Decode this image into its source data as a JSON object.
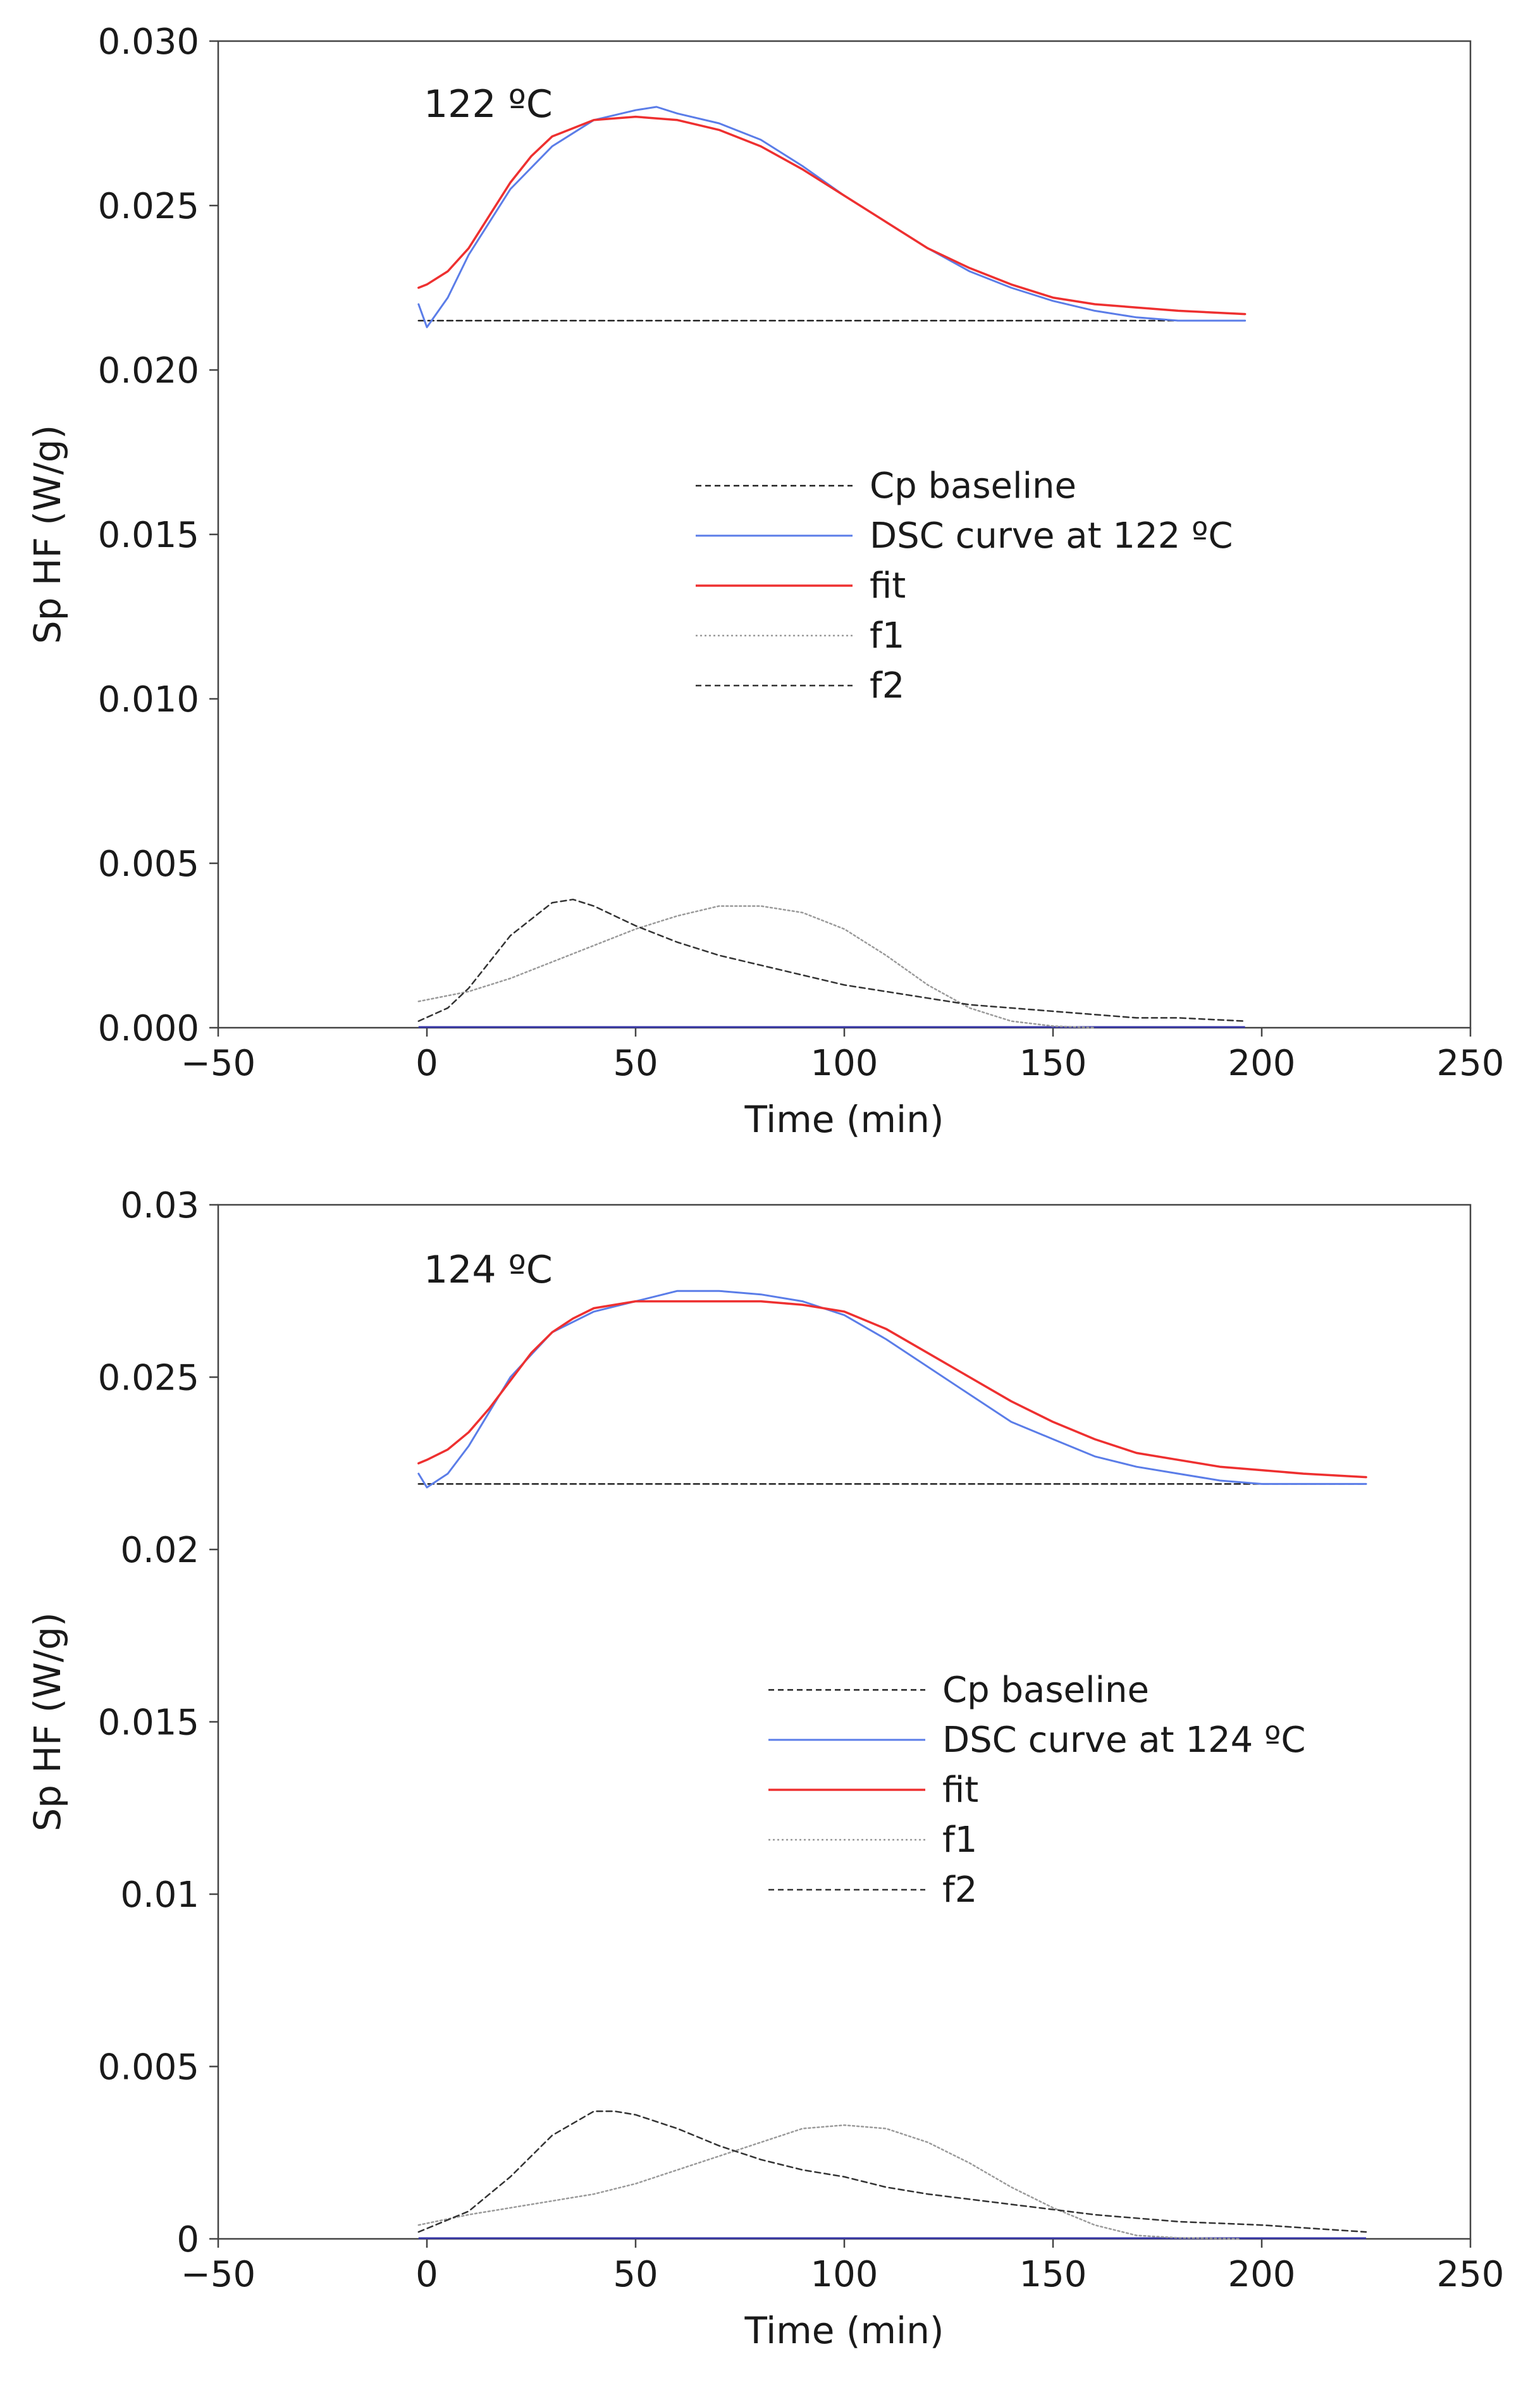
{
  "chart_data": [
    {
      "type": "line",
      "annotation": "122 ºC",
      "xlabel": "Time (min)",
      "ylabel": "Sp HF (W/g)",
      "xlim": [
        -50,
        250
      ],
      "ylim": [
        0,
        0.03
      ],
      "xticks": [
        -50,
        0,
        50,
        100,
        150,
        200,
        250
      ],
      "xtick_labels": [
        "−50",
        "0",
        "50",
        "100",
        "150",
        "200",
        "250"
      ],
      "yticks": [
        0,
        0.005,
        0.01,
        0.015,
        0.02,
        0.025,
        0.03
      ],
      "ytick_labels": [
        "0.000",
        "0.005",
        "0.010",
        "0.015",
        "0.020",
        "0.025",
        "0.030"
      ],
      "grid": false,
      "legend_position": "center-right",
      "colors": {
        "baseline": "#222222",
        "dsc": "#5b7de8",
        "fit": "#ee3030",
        "f1": "#9a9a9a",
        "f2": "#333333",
        "zero": "#3a3aa8"
      },
      "series": [
        {
          "name": "Cp baseline",
          "style": "dashed",
          "color_key": "baseline",
          "x": [
            -2,
            196
          ],
          "y": [
            0.0215,
            0.0215
          ]
        },
        {
          "name": "DSC curve at 122 ºC",
          "style": "solid",
          "color_key": "dsc",
          "x": [
            -2,
            0,
            5,
            10,
            20,
            30,
            40,
            50,
            55,
            60,
            70,
            80,
            90,
            100,
            110,
            120,
            130,
            140,
            150,
            160,
            170,
            180,
            190,
            196
          ],
          "y": [
            0.022,
            0.0213,
            0.0222,
            0.0235,
            0.0255,
            0.0268,
            0.0276,
            0.0279,
            0.028,
            0.0278,
            0.0275,
            0.027,
            0.0262,
            0.0253,
            0.0245,
            0.0237,
            0.023,
            0.0225,
            0.0221,
            0.0218,
            0.0216,
            0.0215,
            0.0215,
            0.0215
          ]
        },
        {
          "name": "fit",
          "style": "solid",
          "color_key": "fit",
          "x": [
            -2,
            0,
            5,
            10,
            15,
            20,
            25,
            30,
            40,
            50,
            60,
            70,
            80,
            90,
            100,
            110,
            120,
            130,
            140,
            150,
            160,
            170,
            180,
            196
          ],
          "y": [
            0.0225,
            0.0226,
            0.023,
            0.0237,
            0.0247,
            0.0257,
            0.0265,
            0.0271,
            0.0276,
            0.0277,
            0.0276,
            0.0273,
            0.0268,
            0.0261,
            0.0253,
            0.0245,
            0.0237,
            0.0231,
            0.0226,
            0.0222,
            0.022,
            0.0219,
            0.0218,
            0.0217
          ]
        },
        {
          "name": "f1",
          "style": "dotted",
          "color_key": "f1",
          "x": [
            -2,
            10,
            20,
            30,
            40,
            50,
            60,
            70,
            75,
            80,
            90,
            100,
            110,
            120,
            130,
            140,
            150,
            160
          ],
          "y": [
            0.0008,
            0.0011,
            0.0015,
            0.002,
            0.0025,
            0.003,
            0.0034,
            0.0037,
            0.0037,
            0.0037,
            0.0035,
            0.003,
            0.0022,
            0.0013,
            0.0006,
            0.0002,
            5e-05,
            0
          ]
        },
        {
          "name": "f2",
          "style": "dashed",
          "color_key": "f2",
          "x": [
            -2,
            5,
            10,
            20,
            30,
            35,
            40,
            50,
            60,
            70,
            80,
            90,
            100,
            110,
            120,
            130,
            140,
            150,
            160,
            170,
            180,
            196
          ],
          "y": [
            0.0002,
            0.0006,
            0.0012,
            0.0028,
            0.0038,
            0.0039,
            0.0037,
            0.0031,
            0.0026,
            0.0022,
            0.0019,
            0.0016,
            0.0013,
            0.0011,
            0.0009,
            0.0007,
            0.0006,
            0.0005,
            0.0004,
            0.0003,
            0.0003,
            0.0002
          ]
        }
      ]
    },
    {
      "type": "line",
      "annotation": "124 ºC",
      "xlabel": "Time (min)",
      "ylabel": "Sp HF (W/g)",
      "xlim": [
        -50,
        250
      ],
      "ylim": [
        0,
        0.03
      ],
      "xticks": [
        -50,
        0,
        50,
        100,
        150,
        200,
        250
      ],
      "xtick_labels": [
        "−50",
        "0",
        "50",
        "100",
        "150",
        "200",
        "250"
      ],
      "yticks": [
        0,
        0.005,
        0.01,
        0.015,
        0.02,
        0.025,
        0.03
      ],
      "ytick_labels": [
        "0",
        "0.005",
        "0.01",
        "0.015",
        "0.02",
        "0.025",
        "0.03"
      ],
      "grid": false,
      "legend_position": "center-right",
      "colors": {
        "baseline": "#222222",
        "dsc": "#5b7de8",
        "fit": "#ee3030",
        "f1": "#9a9a9a",
        "f2": "#333333",
        "zero": "#3a3aa8"
      },
      "series": [
        {
          "name": "Cp baseline",
          "style": "dashed",
          "color_key": "baseline",
          "x": [
            -2,
            225
          ],
          "y": [
            0.0219,
            0.0219
          ]
        },
        {
          "name": "DSC curve at 124 ºC",
          "style": "solid",
          "color_key": "dsc",
          "x": [
            -2,
            0,
            5,
            10,
            20,
            30,
            40,
            50,
            60,
            70,
            80,
            90,
            100,
            110,
            120,
            130,
            140,
            150,
            160,
            170,
            180,
            190,
            200,
            210,
            225
          ],
          "y": [
            0.0222,
            0.0218,
            0.0222,
            0.023,
            0.025,
            0.0263,
            0.0269,
            0.0272,
            0.0275,
            0.0275,
            0.0274,
            0.0272,
            0.0268,
            0.0261,
            0.0253,
            0.0245,
            0.0237,
            0.0232,
            0.0227,
            0.0224,
            0.0222,
            0.022,
            0.0219,
            0.0219,
            0.0219
          ]
        },
        {
          "name": "fit",
          "style": "solid",
          "color_key": "fit",
          "x": [
            -2,
            0,
            5,
            10,
            15,
            20,
            25,
            30,
            35,
            40,
            50,
            60,
            70,
            80,
            90,
            100,
            110,
            120,
            130,
            140,
            150,
            160,
            170,
            180,
            190,
            200,
            210,
            225
          ],
          "y": [
            0.0225,
            0.0226,
            0.0229,
            0.0234,
            0.0241,
            0.0249,
            0.0257,
            0.0263,
            0.0267,
            0.027,
            0.0272,
            0.0272,
            0.0272,
            0.0272,
            0.0271,
            0.0269,
            0.0264,
            0.0257,
            0.025,
            0.0243,
            0.0237,
            0.0232,
            0.0228,
            0.0226,
            0.0224,
            0.0223,
            0.0222,
            0.0221
          ]
        },
        {
          "name": "f1",
          "style": "dotted",
          "color_key": "f1",
          "x": [
            -2,
            10,
            25,
            40,
            50,
            60,
            70,
            80,
            90,
            100,
            110,
            120,
            130,
            140,
            150,
            160,
            170,
            180,
            195
          ],
          "y": [
            0.0004,
            0.0007,
            0.001,
            0.0013,
            0.0016,
            0.002,
            0.0024,
            0.0028,
            0.0032,
            0.0033,
            0.0032,
            0.0028,
            0.0022,
            0.0015,
            0.0009,
            0.0004,
            0.0001,
            3e-05,
            0
          ]
        },
        {
          "name": "f2",
          "style": "dashed",
          "color_key": "f2",
          "x": [
            -2,
            10,
            20,
            30,
            40,
            45,
            50,
            60,
            70,
            80,
            90,
            100,
            110,
            120,
            140,
            160,
            180,
            200,
            225
          ],
          "y": [
            0.0002,
            0.0008,
            0.0018,
            0.003,
            0.0037,
            0.0037,
            0.0036,
            0.0032,
            0.0027,
            0.0023,
            0.002,
            0.0018,
            0.0015,
            0.0013,
            0.001,
            0.0007,
            0.0005,
            0.0004,
            0.0002
          ]
        }
      ]
    }
  ]
}
